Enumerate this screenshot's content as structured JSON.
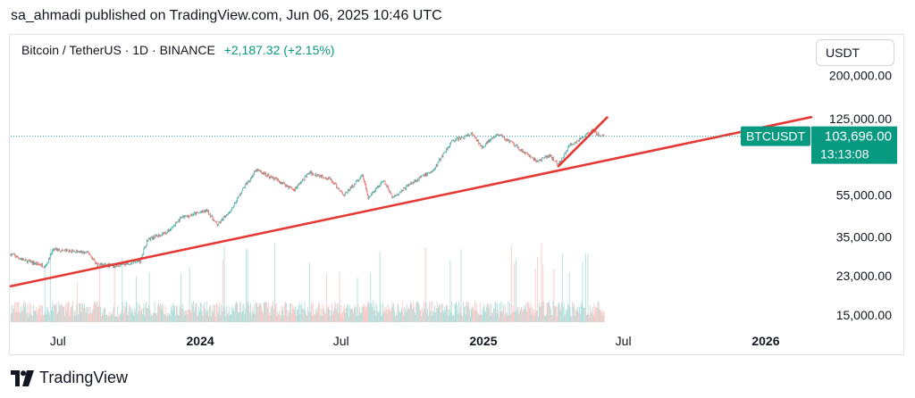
{
  "header": {
    "published_line": "sa_ahmadi published on TradingView.com, Jun 06, 2025 10:46 UTC"
  },
  "legend": {
    "symbol_line": "Bitcoin / TetherUS · 1D · BINANCE",
    "change": "+2,187.32 (+2.15%)"
  },
  "price_axis": {
    "currency": "USDT"
  },
  "footer": {
    "brand": "TradingView"
  },
  "colors": {
    "up": "#26a69a",
    "down": "#ef5350",
    "trend": "#e53935",
    "badge": "#089981",
    "dotted": "#26a69a"
  },
  "chart_data": {
    "type": "candlestick",
    "y_scale": "log",
    "ylim": [
      13000,
      230000
    ],
    "y_ticks": [
      {
        "value": 200000,
        "label": "200,000.00"
      },
      {
        "value": 125000,
        "label": "125,000.00"
      },
      {
        "value": 55000,
        "label": "55,000.00"
      },
      {
        "value": 35000,
        "label": "35,000.00"
      },
      {
        "value": 23000,
        "label": "23,000.00"
      },
      {
        "value": 15000,
        "label": "15,000.00"
      }
    ],
    "x_range": [
      "2023-05-01",
      "2026-03-01"
    ],
    "x_ticks": [
      {
        "date": "2023-07-01",
        "label": "Jul",
        "bold": false
      },
      {
        "date": "2024-01-01",
        "label": "2024",
        "bold": true
      },
      {
        "date": "2024-07-01",
        "label": "Jul",
        "bold": false
      },
      {
        "date": "2025-01-01",
        "label": "2025",
        "bold": true
      },
      {
        "date": "2025-07-01",
        "label": "Jul",
        "bold": false
      },
      {
        "date": "2026-01-01",
        "label": "2026",
        "bold": true
      }
    ],
    "price_path": [
      [
        "2023-05-01",
        29000
      ],
      [
        "2023-05-20",
        27000
      ],
      [
        "2023-06-15",
        25500
      ],
      [
        "2023-06-25",
        30500
      ],
      [
        "2023-07-15",
        30000
      ],
      [
        "2023-08-10",
        29300
      ],
      [
        "2023-08-20",
        26000
      ],
      [
        "2023-09-12",
        25500
      ],
      [
        "2023-10-15",
        27000
      ],
      [
        "2023-10-25",
        34000
      ],
      [
        "2023-11-20",
        37000
      ],
      [
        "2023-12-08",
        43000
      ],
      [
        "2024-01-10",
        46500
      ],
      [
        "2024-01-23",
        39500
      ],
      [
        "2024-02-10",
        47000
      ],
      [
        "2024-02-28",
        61000
      ],
      [
        "2024-03-14",
        72000
      ],
      [
        "2024-04-15",
        63000
      ],
      [
        "2024-05-01",
        58000
      ],
      [
        "2024-05-21",
        70000
      ],
      [
        "2024-06-15",
        66000
      ],
      [
        "2024-07-05",
        55000
      ],
      [
        "2024-07-29",
        68000
      ],
      [
        "2024-08-05",
        53000
      ],
      [
        "2024-08-25",
        64000
      ],
      [
        "2024-09-06",
        53500
      ],
      [
        "2024-10-01",
        63000
      ],
      [
        "2024-10-29",
        72000
      ],
      [
        "2024-11-12",
        88000
      ],
      [
        "2024-11-22",
        98500
      ],
      [
        "2024-12-17",
        106000
      ],
      [
        "2024-12-30",
        92500
      ],
      [
        "2025-01-20",
        106000
      ],
      [
        "2025-02-05",
        97000
      ],
      [
        "2025-02-25",
        86000
      ],
      [
        "2025-03-11",
        79000
      ],
      [
        "2025-03-28",
        84000
      ],
      [
        "2025-04-08",
        76500
      ],
      [
        "2025-04-22",
        93500
      ],
      [
        "2025-05-10",
        103000
      ],
      [
        "2025-05-22",
        110000
      ],
      [
        "2025-05-31",
        104000
      ],
      [
        "2025-06-06",
        103696
      ]
    ],
    "trendlines": [
      {
        "from": [
          "2023-05-01",
          20500
        ],
        "to": [
          "2026-03-01",
          127500
        ]
      },
      {
        "from": [
          "2025-04-08",
          75000
        ],
        "to": [
          "2025-06-10",
          127000
        ]
      }
    ],
    "last": {
      "symbol": "BTCUSDT",
      "price": 103696,
      "price_label": "103,696.00",
      "countdown": "13:13:08"
    },
    "volume": "shown"
  }
}
